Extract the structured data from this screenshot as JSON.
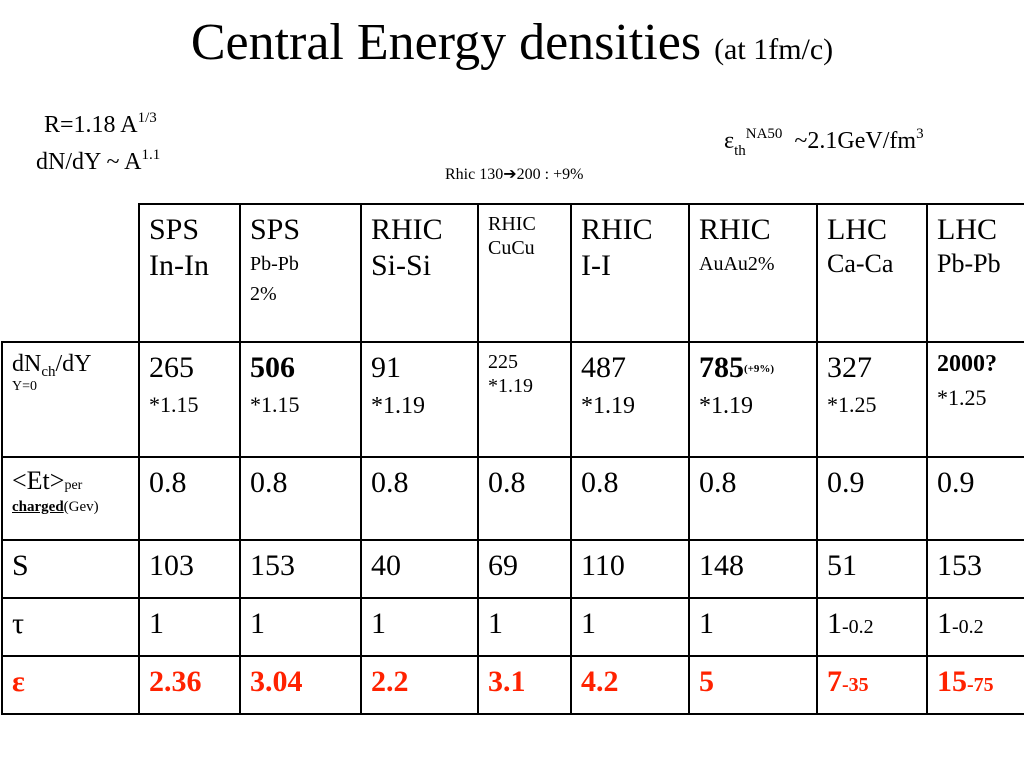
{
  "title": {
    "main": "Central Energy densities",
    "sub": "(at 1fm/c)"
  },
  "notes": {
    "r_formula": "R=1.18 A",
    "r_exp": "1/3",
    "dn_formula": "dN/dY ~  A",
    "dn_exp": "1.1",
    "eps_symbol": "ε",
    "eps_sub": "th",
    "eps_sup": "NA50",
    "eps_value": "~2.1GeV/fm",
    "eps_unit_exp": "3",
    "rhic_note_a": "Rhic 130",
    "rhic_note_arrow": "➔",
    "rhic_note_b": "200 : +9%"
  },
  "table": {
    "headers": [
      {
        "l1": "SPS",
        "l2": "In-In"
      },
      {
        "l1": "SPS",
        "l2": "Pb-Pb",
        "l3": "2%"
      },
      {
        "l1": "RHIC",
        "l2": "Si-Si"
      },
      {
        "l1": "RHIC",
        "l2": "CuCu"
      },
      {
        "l1": "RHIC",
        "l2": "I-I"
      },
      {
        "l1": "RHIC",
        "l2": "AuAu2%"
      },
      {
        "l1": "LHC",
        "l2": "Ca-Ca"
      },
      {
        "l1": "LHC",
        "l2": "Pb-Pb"
      }
    ],
    "row_dn": {
      "label_a": "dN",
      "label_sub": "ch",
      "label_b": "/dY",
      "label_y": "Y=0",
      "cells": [
        {
          "v": "265",
          "m": "*1.15"
        },
        {
          "v": "506",
          "m": "*1.15"
        },
        {
          "v": "91",
          "m": "*1.19"
        },
        {
          "v": "225",
          "m": "*1.19"
        },
        {
          "v": "487",
          "m": "*1.19"
        },
        {
          "v": "785",
          "note": "(+9%)",
          "m": "*1.19"
        },
        {
          "v": "327",
          "m": "*1.25"
        },
        {
          "v": "2000?",
          "m": "*1.25"
        }
      ]
    },
    "row_et": {
      "label_a": "<Et>",
      "label_per": "per",
      "label_charged": "charged",
      "label_unit": "(Gev)",
      "cells": [
        "0.8",
        "0.8",
        "0.8",
        "0.8",
        "0.8",
        "0.8",
        "0.9",
        "0.9"
      ]
    },
    "row_s": {
      "label": "S",
      "cells": [
        "103",
        "153",
        "40",
        "69",
        "110",
        "148",
        "51",
        "153"
      ]
    },
    "row_tau": {
      "label": "τ",
      "cells": [
        {
          "v": "1"
        },
        {
          "v": "1"
        },
        {
          "v": "1"
        },
        {
          "v": "1"
        },
        {
          "v": "1"
        },
        {
          "v": "1"
        },
        {
          "v": "1",
          "t": "-0.2"
        },
        {
          "v": "1",
          "t": "-0.2"
        }
      ]
    },
    "row_eps": {
      "label": "ε",
      "cells": [
        {
          "v": "2.36"
        },
        {
          "v": "3.04"
        },
        {
          "v": "2.2"
        },
        {
          "v": "3.1"
        },
        {
          "v": "4.2"
        },
        {
          "v": "5"
        },
        {
          "v": "7",
          "t": "-35"
        },
        {
          "v": "15",
          "t": "-75"
        }
      ]
    }
  },
  "colors": {
    "emphasis": "#ff2200",
    "text": "#000000",
    "background": "#ffffff"
  }
}
